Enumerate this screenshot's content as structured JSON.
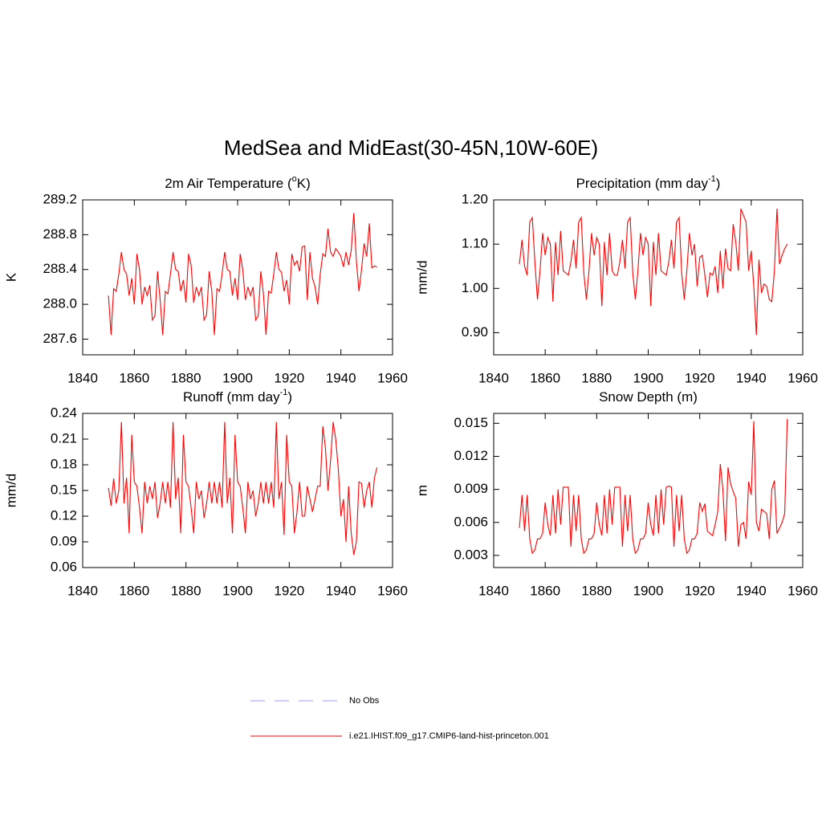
{
  "title": "MedSea and MidEast(30-45N,10W-60E)",
  "legend": [
    {
      "name": "No Obs",
      "color": "#9a9aff",
      "dash": true
    },
    {
      "name": "i.e21.IHIST.f09_g17.CMIP6-land-hist-princeton.001",
      "color": "#ff0000",
      "dash": false
    }
  ],
  "chart_data": [
    {
      "type": "line",
      "title": [
        "2m Air Temperature (",
        "o",
        "K)"
      ],
      "y_label": "K",
      "color": "#ff0000",
      "xlim": [
        1840,
        1960
      ],
      "xticks": [
        1840,
        1860,
        1880,
        1900,
        1920,
        1940,
        1960
      ],
      "ylim": [
        287.42,
        289.2
      ],
      "yticks": [
        287.6,
        {
          "value": 288,
          "label": "288.0"
        },
        288.4,
        288.8,
        289.2
      ],
      "x": [
        1850,
        1851,
        1852,
        1853,
        1854,
        1855,
        1856,
        1857,
        1858,
        1859,
        1860,
        1861,
        1862,
        1863,
        1864,
        1865,
        1866,
        1867,
        1868,
        1869,
        1870,
        1871,
        1872,
        1873,
        1874,
        1875,
        1876,
        1877,
        1878,
        1879,
        1880,
        1881,
        1882,
        1883,
        1884,
        1885,
        1886,
        1887,
        1888,
        1889,
        1890,
        1891,
        1892,
        1893,
        1894,
        1895,
        1896,
        1897,
        1898,
        1899,
        1900,
        1901,
        1902,
        1903,
        1904,
        1905,
        1906,
        1907,
        1908,
        1909,
        1910,
        1911,
        1912,
        1913,
        1914,
        1915,
        1916,
        1917,
        1918,
        1919,
        1920,
        1921,
        1922,
        1923,
        1924,
        1925,
        1926,
        1927,
        1928,
        1929,
        1930,
        1931,
        1932,
        1933,
        1934,
        1935,
        1936,
        1937,
        1938,
        1939,
        1940,
        1941,
        1942,
        1943,
        1944,
        1945,
        1946,
        1947,
        1948,
        1949,
        1950,
        1951,
        1952,
        1953,
        1954
      ],
      "values": [
        288.1,
        287.65,
        288.18,
        288.15,
        288.35,
        288.6,
        288.4,
        288.35,
        288.1,
        288.3,
        288.0,
        288.58,
        288.4,
        288.0,
        288.2,
        288.1,
        288.22,
        287.82,
        287.87,
        288.38,
        288.05,
        287.65,
        288.15,
        288.12,
        288.35,
        288.6,
        288.4,
        288.38,
        288.15,
        288.28,
        288.02,
        288.58,
        288.45,
        288.02,
        288.2,
        288.1,
        288.2,
        287.82,
        287.88,
        288.38,
        288.15,
        287.65,
        288.18,
        288.15,
        288.35,
        288.6,
        288.4,
        288.38,
        288.1,
        288.3,
        288.05,
        288.58,
        288.4,
        288.05,
        288.2,
        288.1,
        288.2,
        287.82,
        287.87,
        288.38,
        288.12,
        287.65,
        288.15,
        288.13,
        288.35,
        288.6,
        288.4,
        288.37,
        288.15,
        288.28,
        288.0,
        288.58,
        288.45,
        288.5,
        288.38,
        288.66,
        288.67,
        288.05,
        288.6,
        288.3,
        288.2,
        288.0,
        288.35,
        288.58,
        288.55,
        288.87,
        288.6,
        288.55,
        288.64,
        288.6,
        288.55,
        288.43,
        288.6,
        288.45,
        288.62,
        289.05,
        288.5,
        288.15,
        288.4,
        288.7,
        288.55,
        288.93,
        288.42,
        288.44,
        288.43
      ]
    },
    {
      "type": "line",
      "title": [
        "Precipitation (mm day",
        "-1",
        ")"
      ],
      "y_label": "mm/d",
      "color": "#ff0000",
      "xlim": [
        1840,
        1960
      ],
      "xticks": [
        1840,
        1860,
        1880,
        1900,
        1920,
        1940,
        1960
      ],
      "ylim": [
        0.85,
        1.2
      ],
      "yticks": [
        {
          "value": 0.9,
          "label": "0.90"
        },
        {
          "value": 1,
          "label": "1.00"
        },
        {
          "value": 1.1,
          "label": "1.10"
        },
        {
          "value": 1.2,
          "label": "1.20"
        }
      ],
      "x": [
        1850,
        1851,
        1852,
        1853,
        1854,
        1855,
        1856,
        1857,
        1858,
        1859,
        1860,
        1861,
        1862,
        1863,
        1864,
        1865,
        1866,
        1867,
        1868,
        1869,
        1870,
        1871,
        1872,
        1873,
        1874,
        1875,
        1876,
        1877,
        1878,
        1879,
        1880,
        1881,
        1882,
        1883,
        1884,
        1885,
        1886,
        1887,
        1888,
        1889,
        1890,
        1891,
        1892,
        1893,
        1894,
        1895,
        1896,
        1897,
        1898,
        1899,
        1900,
        1901,
        1902,
        1903,
        1904,
        1905,
        1906,
        1907,
        1908,
        1909,
        1910,
        1911,
        1912,
        1913,
        1914,
        1915,
        1916,
        1917,
        1918,
        1919,
        1920,
        1921,
        1922,
        1923,
        1924,
        1925,
        1926,
        1927,
        1928,
        1929,
        1930,
        1931,
        1932,
        1933,
        1934,
        1935,
        1936,
        1937,
        1938,
        1939,
        1940,
        1941,
        1942,
        1943,
        1944,
        1945,
        1946,
        1947,
        1948,
        1949,
        1950,
        1951,
        1952,
        1953,
        1954
      ],
      "values": [
        1.055,
        1.11,
        1.05,
        1.03,
        1.15,
        1.16,
        1.06,
        0.975,
        1.04,
        1.125,
        1.075,
        1.115,
        1.1,
        0.97,
        1.105,
        1.03,
        1.13,
        1.04,
        1.035,
        1.03,
        1.06,
        1.11,
        1.045,
        1.15,
        1.16,
        1.035,
        0.975,
        1.04,
        1.125,
        1.075,
        1.115,
        1.1,
        0.96,
        1.105,
        1.03,
        1.125,
        1.04,
        1.03,
        1.03,
        1.06,
        1.11,
        1.045,
        1.15,
        1.16,
        1.035,
        0.975,
        1.04,
        1.125,
        1.075,
        1.115,
        1.1,
        0.96,
        1.105,
        1.03,
        1.125,
        1.04,
        1.035,
        1.03,
        1.06,
        1.11,
        1.045,
        1.15,
        1.16,
        1.035,
        0.975,
        1.04,
        1.125,
        1.075,
        1.1,
        1.005,
        1.07,
        1.075,
        1.03,
        0.98,
        1.035,
        1.03,
        1.05,
        0.99,
        1.085,
        1.0,
        1.09,
        1.045,
        1.04,
        1.145,
        1.105,
        1.04,
        1.18,
        1.165,
        1.15,
        1.04,
        1.085,
        1.005,
        0.895,
        1.065,
        0.99,
        1.01,
        1.005,
        0.975,
        0.97,
        1.04,
        1.18,
        1.055,
        1.075,
        1.09,
        1.1
      ]
    },
    {
      "type": "line",
      "title": [
        "Runoff (mm day",
        "-1",
        ")"
      ],
      "y_label": "mm/d",
      "color": "#ff0000",
      "xlim": [
        1840,
        1960
      ],
      "xticks": [
        1840,
        1860,
        1880,
        1900,
        1920,
        1940,
        1960
      ],
      "ylim": [
        0.06,
        0.24
      ],
      "yticks": [
        0.06,
        0.09,
        0.12,
        0.15,
        0.18,
        0.21,
        0.24
      ],
      "x": [
        1850,
        1851,
        1852,
        1853,
        1854,
        1855,
        1856,
        1857,
        1858,
        1859,
        1860,
        1861,
        1862,
        1863,
        1864,
        1865,
        1866,
        1867,
        1868,
        1869,
        1870,
        1871,
        1872,
        1873,
        1874,
        1875,
        1876,
        1877,
        1878,
        1879,
        1880,
        1881,
        1882,
        1883,
        1884,
        1885,
        1886,
        1887,
        1888,
        1889,
        1890,
        1891,
        1892,
        1893,
        1894,
        1895,
        1896,
        1897,
        1898,
        1899,
        1900,
        1901,
        1902,
        1903,
        1904,
        1905,
        1906,
        1907,
        1908,
        1909,
        1910,
        1911,
        1912,
        1913,
        1914,
        1915,
        1916,
        1917,
        1918,
        1919,
        1920,
        1921,
        1922,
        1923,
        1924,
        1925,
        1926,
        1927,
        1928,
        1929,
        1930,
        1931,
        1932,
        1933,
        1934,
        1935,
        1936,
        1937,
        1938,
        1939,
        1940,
        1941,
        1942,
        1943,
        1944,
        1945,
        1946,
        1947,
        1948,
        1949,
        1950,
        1951,
        1952,
        1953,
        1954
      ],
      "values": [
        0.153,
        0.132,
        0.164,
        0.135,
        0.15,
        0.23,
        0.135,
        0.165,
        0.1,
        0.215,
        0.16,
        0.155,
        0.13,
        0.1,
        0.16,
        0.135,
        0.155,
        0.14,
        0.16,
        0.118,
        0.135,
        0.16,
        0.135,
        0.16,
        0.13,
        0.23,
        0.14,
        0.165,
        0.1,
        0.215,
        0.16,
        0.155,
        0.13,
        0.1,
        0.16,
        0.14,
        0.15,
        0.118,
        0.135,
        0.16,
        0.135,
        0.16,
        0.135,
        0.16,
        0.13,
        0.23,
        0.135,
        0.165,
        0.1,
        0.215,
        0.16,
        0.155,
        0.13,
        0.1,
        0.16,
        0.14,
        0.15,
        0.12,
        0.135,
        0.16,
        0.135,
        0.16,
        0.135,
        0.16,
        0.13,
        0.23,
        0.14,
        0.16,
        0.098,
        0.215,
        0.16,
        0.155,
        0.1,
        0.125,
        0.16,
        0.12,
        0.12,
        0.155,
        0.14,
        0.125,
        0.14,
        0.155,
        0.155,
        0.225,
        0.2,
        0.15,
        0.185,
        0.23,
        0.21,
        0.175,
        0.12,
        0.14,
        0.09,
        0.155,
        0.1,
        0.075,
        0.09,
        0.16,
        0.158,
        0.13,
        0.15,
        0.16,
        0.13,
        0.165,
        0.177
      ]
    },
    {
      "type": "line",
      "title": [
        "Snow Depth (m)"
      ],
      "y_label": "m",
      "color": "#ff0000",
      "xlim": [
        1840,
        1960
      ],
      "xticks": [
        1840,
        1860,
        1880,
        1900,
        1920,
        1940,
        1960
      ],
      "ylim": [
        0.0019,
        0.0159
      ],
      "yticks": [
        0.003,
        0.006,
        0.009,
        0.012,
        0.015
      ],
      "x": [
        1850,
        1851,
        1852,
        1853,
        1854,
        1855,
        1856,
        1857,
        1858,
        1859,
        1860,
        1861,
        1862,
        1863,
        1864,
        1865,
        1866,
        1867,
        1868,
        1869,
        1870,
        1871,
        1872,
        1873,
        1874,
        1875,
        1876,
        1877,
        1878,
        1879,
        1880,
        1881,
        1882,
        1883,
        1884,
        1885,
        1886,
        1887,
        1888,
        1889,
        1890,
        1891,
        1892,
        1893,
        1894,
        1895,
        1896,
        1897,
        1898,
        1899,
        1900,
        1901,
        1902,
        1903,
        1904,
        1905,
        1906,
        1907,
        1908,
        1909,
        1910,
        1911,
        1912,
        1913,
        1914,
        1915,
        1916,
        1917,
        1918,
        1919,
        1920,
        1921,
        1922,
        1923,
        1924,
        1925,
        1926,
        1927,
        1928,
        1929,
        1930,
        1931,
        1932,
        1933,
        1934,
        1935,
        1936,
        1937,
        1938,
        1939,
        1940,
        1941,
        1942,
        1943,
        1944,
        1945,
        1946,
        1947,
        1948,
        1949,
        1950,
        1951,
        1952,
        1953,
        1954
      ],
      "values": [
        0.0055,
        0.0085,
        0.0052,
        0.0085,
        0.0045,
        0.0032,
        0.0035,
        0.0045,
        0.0045,
        0.005,
        0.0078,
        0.0058,
        0.0048,
        0.0085,
        0.005,
        0.009,
        0.0058,
        0.0092,
        0.0092,
        0.0092,
        0.0038,
        0.0085,
        0.0052,
        0.0085,
        0.0045,
        0.0032,
        0.0035,
        0.0045,
        0.0045,
        0.005,
        0.0078,
        0.0058,
        0.0048,
        0.0085,
        0.005,
        0.009,
        0.0058,
        0.0092,
        0.0092,
        0.0092,
        0.0038,
        0.0085,
        0.0052,
        0.0085,
        0.0045,
        0.0032,
        0.0035,
        0.0045,
        0.0045,
        0.005,
        0.0078,
        0.0058,
        0.0048,
        0.0085,
        0.005,
        0.009,
        0.0058,
        0.0092,
        0.0093,
        0.0092,
        0.0038,
        0.0085,
        0.0052,
        0.0085,
        0.0045,
        0.0032,
        0.0035,
        0.0045,
        0.0045,
        0.005,
        0.0078,
        0.007,
        0.0077,
        0.0052,
        0.005,
        0.0048,
        0.0058,
        0.007,
        0.0113,
        0.009,
        0.0043,
        0.011,
        0.0095,
        0.0088,
        0.0082,
        0.0038,
        0.0058,
        0.006,
        0.0045,
        0.0097,
        0.0085,
        0.0152,
        0.006,
        0.0052,
        0.0072,
        0.007,
        0.0068,
        0.0045,
        0.009,
        0.0098,
        0.005,
        0.0055,
        0.006,
        0.0068,
        0.0154
      ]
    }
  ]
}
